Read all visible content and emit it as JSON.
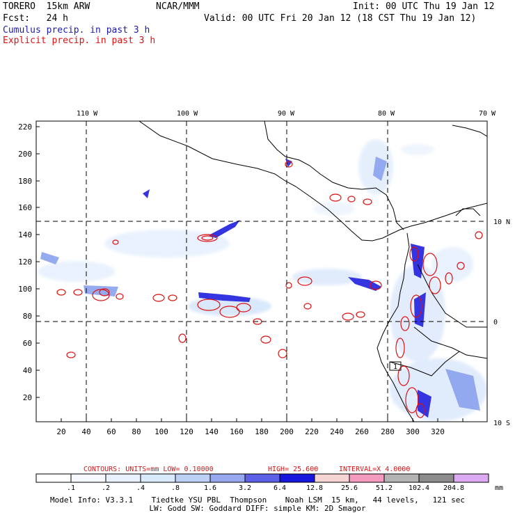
{
  "header": {
    "model": "TORERO  15km ARW",
    "org": "NCAR/MMM",
    "init": "Init: 00 UTC Thu 19 Jan 12",
    "fcst": "Fcst:   24 h",
    "valid": "Valid: 00 UTC Fri 20 Jan 12 (18 CST Thu 19 Jan 12)",
    "legend_cumulus": "Cumulus precip. in past 3 h",
    "legend_explicit": "Explicit precip. in past 3 h"
  },
  "map": {
    "lon_labels": [
      "110 W",
      "100 W",
      "90 W",
      "80 W",
      "70 W"
    ],
    "lat_labels": [
      "10 N",
      "0",
      "10 S"
    ],
    "y_ticks": [
      "220",
      "200",
      "180",
      "160",
      "140",
      "120",
      "100",
      "80",
      "60",
      "40",
      "20"
    ],
    "x_ticks": [
      "20",
      "40",
      "60",
      "80",
      "100",
      "120",
      "140",
      "160",
      "180",
      "200",
      "220",
      "240",
      "260",
      "280",
      "300",
      "320"
    ],
    "point_label": "1"
  },
  "contour_info": {
    "label": "CONTOURS:  UNITS=mm  LOW= 0.10000",
    "high": "HIGH=  25.600",
    "interval": "INTERVAL=X  4.0000"
  },
  "colorbar": {
    "unit": "mm",
    "levels": [
      ".1",
      ".2",
      ".4",
      ".8",
      "1.6",
      "3.2",
      "6.4",
      "12.8",
      "25.6",
      "51.2",
      "102.4",
      "204.8"
    ],
    "colors": [
      "#ffffff",
      "#f5f9ff",
      "#e8f1fd",
      "#d8eafb",
      "#bcd0f5",
      "#98a8ee",
      "#5c60e6",
      "#1616dc",
      "#f6d4d4",
      "#f49abe",
      "#b4b4b4",
      "#8c8c8c",
      "#dcaaf2"
    ]
  },
  "footer": {
    "line1": "Model Info: V3.3.1    Tiedtke YSU PBL  Thompson    Noah LSM  15 km,   44 levels,   121 sec",
    "line2": "LW: Godd SW: Goddard DIFF: simple KM: 2D Smagor"
  }
}
